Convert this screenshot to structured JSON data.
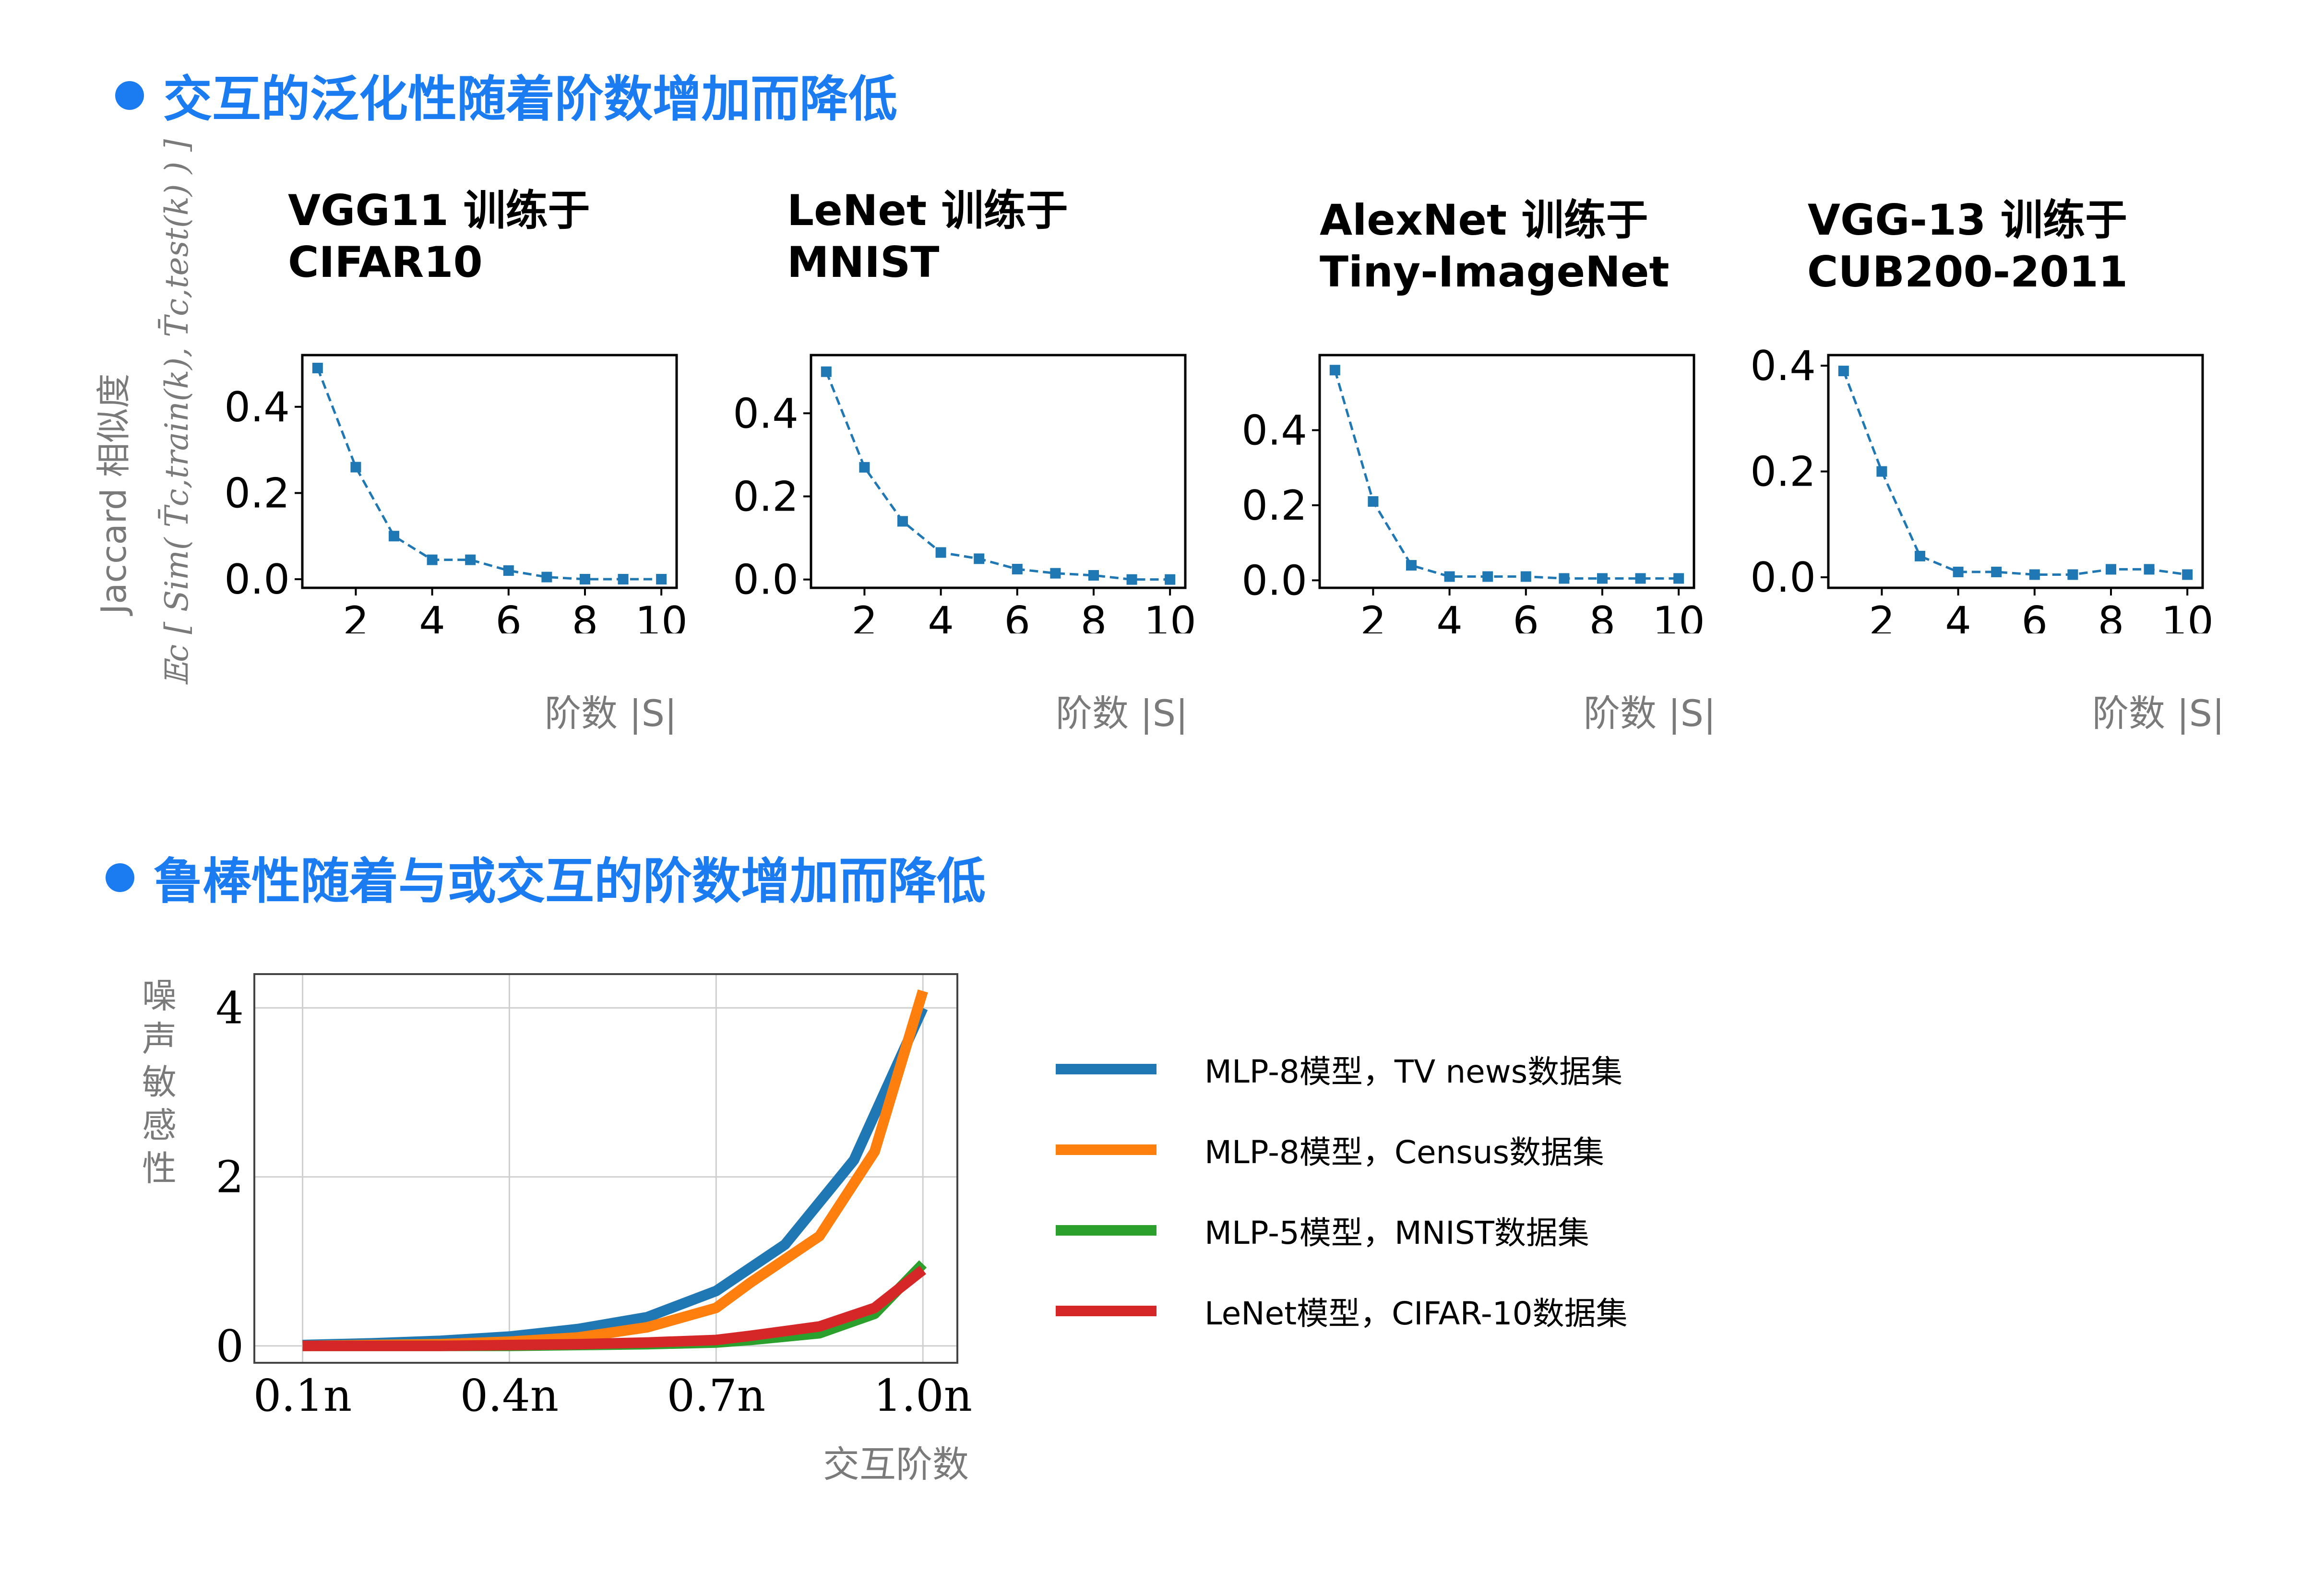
{
  "section1": {
    "title": "交互的泛化性随着阶数增加而降低"
  },
  "section2": {
    "title": "鲁棒性随着与或交互的阶数增加而降低"
  },
  "shared_y_label": {
    "text": "Jaccard 相似度",
    "formula": "𝔼c [ Sim( T̄c,train(k), T̄c,test(k) ) ]"
  },
  "bottom_y_label_chars": [
    "噪",
    "声",
    "敏",
    "感",
    "性"
  ],
  "colors": {
    "accent": "#1a7cf0",
    "marker_blue": "#1f77b4",
    "tv_news": "#1f77b4",
    "census": "#ff7f0e",
    "mnist": "#2ca02c",
    "cifar": "#d62728"
  },
  "chart_data": [
    {
      "type": "line",
      "title_lines": [
        "VGG11 训练于",
        "CIFAR10"
      ],
      "xlabel": "阶数 |S|",
      "x": [
        1,
        2,
        3,
        4,
        5,
        6,
        7,
        8,
        9,
        10
      ],
      "y": [
        0.49,
        0.26,
        0.1,
        0.045,
        0.045,
        0.02,
        0.005,
        0.0,
        0.0,
        0.0
      ],
      "xlim": [
        0.6,
        10.4
      ],
      "ylim": [
        -0.02,
        0.52
      ],
      "xticks": [
        2,
        4,
        6,
        8,
        10
      ],
      "xtick_labels": [
        "2",
        "4",
        "6",
        "8",
        "10"
      ],
      "yticks": [
        0.0,
        0.2,
        0.4
      ],
      "ytick_labels": [
        "0.0",
        "0.2",
        "0.4"
      ]
    },
    {
      "type": "line",
      "title_lines": [
        "LeNet 训练于",
        "MNIST"
      ],
      "xlabel": "阶数 |S|",
      "x": [
        1,
        2,
        3,
        4,
        5,
        6,
        7,
        8,
        9,
        10
      ],
      "y": [
        0.5,
        0.27,
        0.14,
        0.065,
        0.05,
        0.025,
        0.015,
        0.01,
        0.0,
        0.0
      ],
      "xlim": [
        0.6,
        10.4
      ],
      "ylim": [
        -0.02,
        0.54
      ],
      "xticks": [
        2,
        4,
        6,
        8,
        10
      ],
      "xtick_labels": [
        "2",
        "4",
        "6",
        "8",
        "10"
      ],
      "yticks": [
        0.0,
        0.2,
        0.4
      ],
      "ytick_labels": [
        "0.0",
        "0.2",
        "0.4"
      ]
    },
    {
      "type": "line",
      "title_lines": [
        "AlexNet 训练于",
        "Tiny-ImageNet"
      ],
      "xlabel": "阶数 |S|",
      "x": [
        1,
        2,
        3,
        4,
        5,
        6,
        7,
        8,
        9,
        10
      ],
      "y": [
        0.56,
        0.21,
        0.04,
        0.01,
        0.01,
        0.01,
        0.005,
        0.005,
        0.005,
        0.005
      ],
      "xlim": [
        0.6,
        10.4
      ],
      "ylim": [
        -0.02,
        0.6
      ],
      "xticks": [
        2,
        4,
        6,
        8,
        10
      ],
      "xtick_labels": [
        "2",
        "4",
        "6",
        "8",
        "10"
      ],
      "yticks": [
        0.0,
        0.2,
        0.4
      ],
      "ytick_labels": [
        "0.0",
        "0.2",
        "0.4"
      ]
    },
    {
      "type": "line",
      "title_lines": [
        "VGG-13 训练于",
        "CUB200-2011"
      ],
      "xlabel": "阶数 |S|",
      "x": [
        1,
        2,
        3,
        4,
        5,
        6,
        7,
        8,
        9,
        10
      ],
      "y": [
        0.39,
        0.2,
        0.04,
        0.01,
        0.01,
        0.005,
        0.005,
        0.015,
        0.015,
        0.005
      ],
      "xlim": [
        0.6,
        10.4
      ],
      "ylim": [
        -0.02,
        0.42
      ],
      "xticks": [
        2,
        4,
        6,
        8,
        10
      ],
      "xtick_labels": [
        "2",
        "4",
        "6",
        "8",
        "10"
      ],
      "yticks": [
        0.0,
        0.2,
        0.4
      ],
      "ytick_labels": [
        "0.0",
        "0.2",
        "0.4"
      ]
    },
    {
      "type": "line",
      "xlabel": "交互阶数",
      "ylabel": "噪声敏感性",
      "x": [
        0.1,
        0.2,
        0.3,
        0.4,
        0.5,
        0.6,
        0.7,
        0.8,
        0.9,
        1.0
      ],
      "xlim": [
        0.03,
        1.05
      ],
      "ylim": [
        -0.2,
        4.4
      ],
      "xticks": [
        0.1,
        0.4,
        0.7,
        1.0
      ],
      "xtick_labels": [
        "0.1n",
        "0.4n",
        "0.7n",
        "1.0n"
      ],
      "yticks": [
        0,
        2,
        4
      ],
      "ytick_labels": [
        "0",
        "2",
        "4"
      ],
      "grid": true,
      "legend_position": "right",
      "series": [
        {
          "name": "MLP-8模型，TV news数据集",
          "color": "#1f77b4",
          "values": [
            0.01,
            0.03,
            0.06,
            0.11,
            0.2,
            0.34,
            0.65,
            1.2,
            2.2,
            4.0
          ]
        },
        {
          "name": "MLP-8模型，Census数据集",
          "color": "#ff7f0e",
          "values": [
            0.0,
            0.01,
            0.02,
            0.05,
            0.1,
            0.22,
            0.45,
            0.75,
            1.3,
            2.3,
            4.2
          ],
          "x": [
            0.1,
            0.2,
            0.3,
            0.4,
            0.5,
            0.6,
            0.7,
            0.75,
            0.85,
            0.93,
            1.0
          ]
        },
        {
          "name": "MLP-5模型，MNIST数据集",
          "color": "#2ca02c",
          "values": [
            0.0,
            0.0,
            0.0,
            0.0,
            0.01,
            0.02,
            0.04,
            0.07,
            0.15,
            0.38,
            0.97
          ],
          "x": [
            0.1,
            0.2,
            0.3,
            0.4,
            0.5,
            0.6,
            0.7,
            0.75,
            0.85,
            0.93,
            1.0
          ]
        },
        {
          "name": "LeNet模型，CIFAR-10数据集",
          "color": "#d62728",
          "values": [
            0.0,
            0.0,
            0.0,
            0.01,
            0.02,
            0.04,
            0.07,
            0.12,
            0.23,
            0.45,
            0.9
          ],
          "x": [
            0.1,
            0.2,
            0.3,
            0.4,
            0.5,
            0.6,
            0.7,
            0.75,
            0.85,
            0.93,
            1.0
          ]
        }
      ]
    }
  ]
}
